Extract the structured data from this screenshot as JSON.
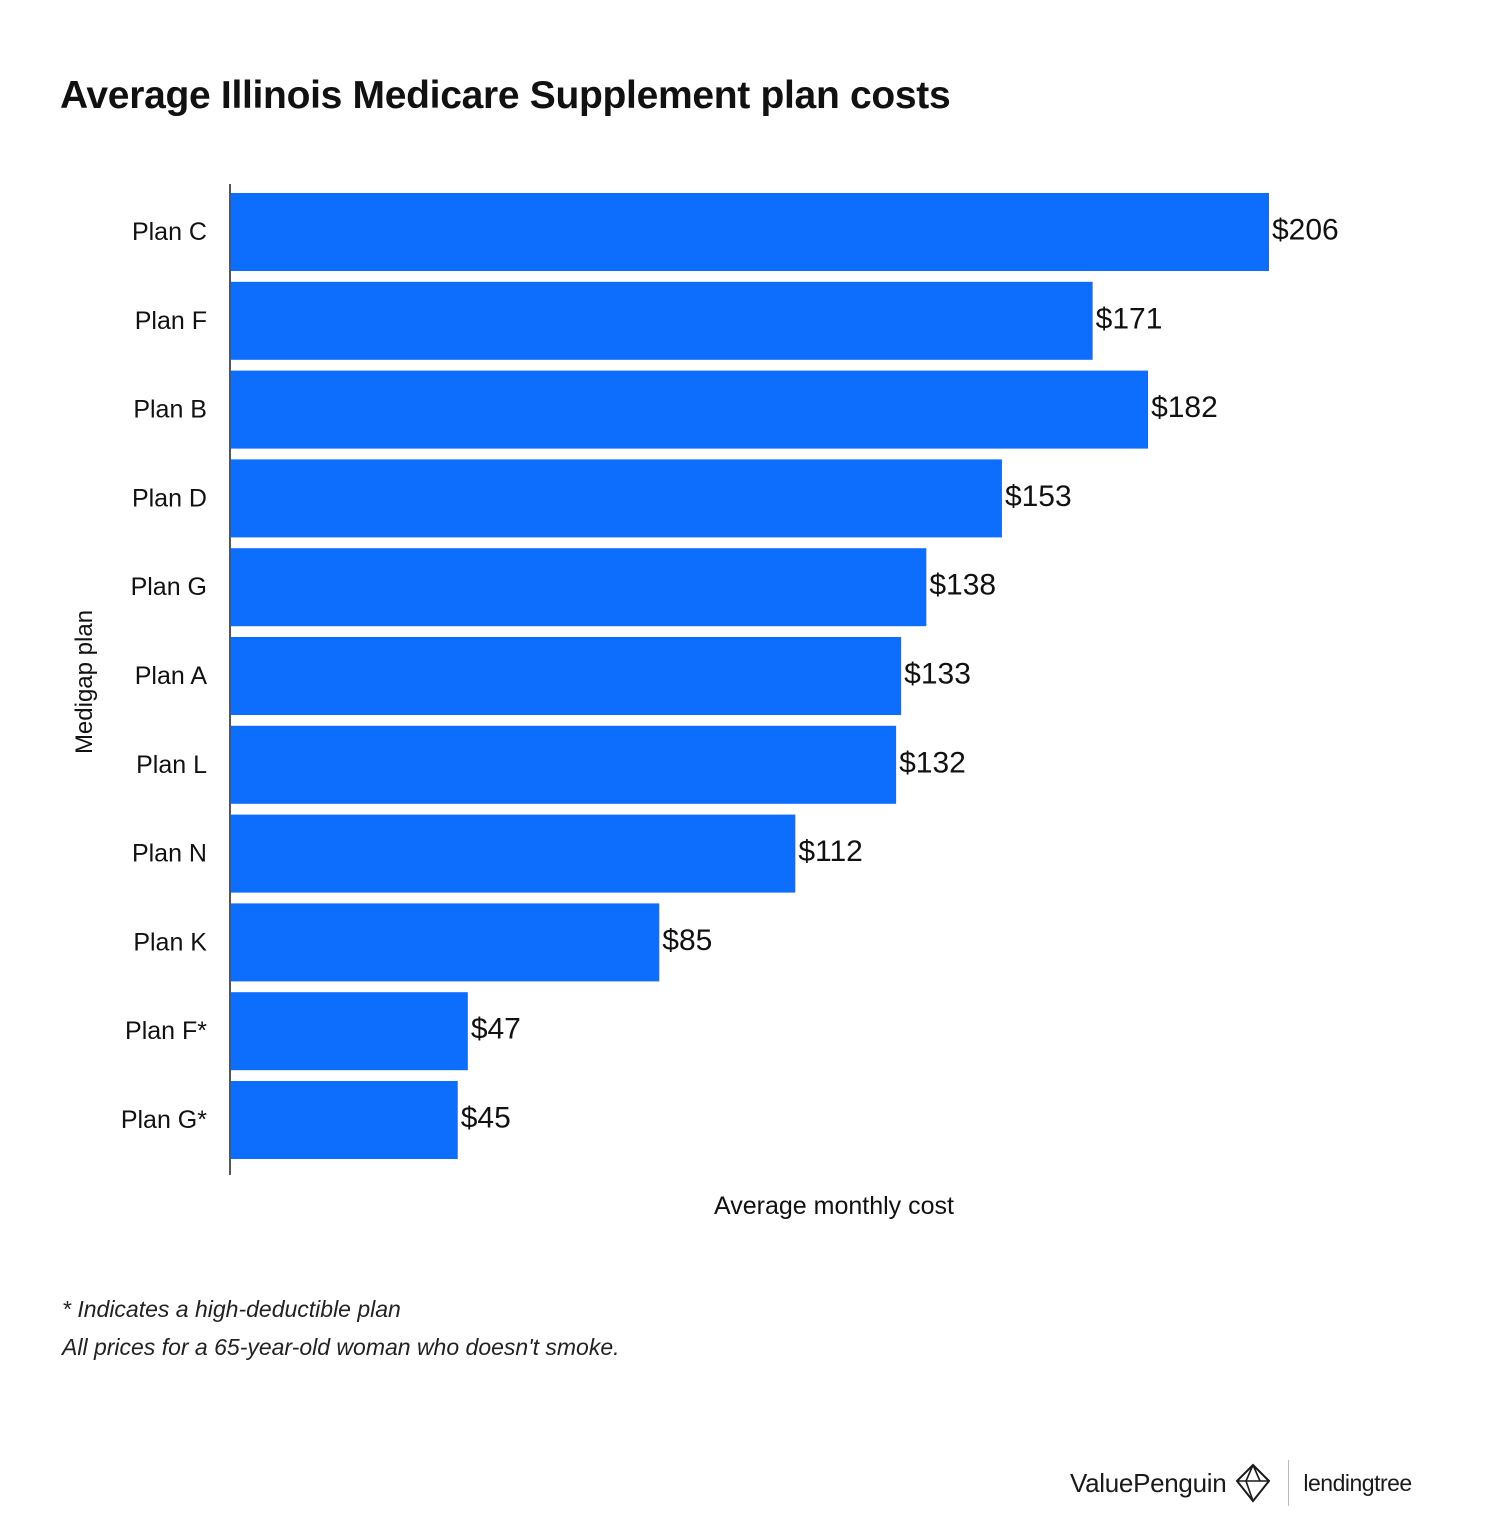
{
  "title": "Average Illinois Medicare Supplement plan costs",
  "footnotes": [
    "* Indicates a high-deductible plan",
    "All prices for a 65-year-old woman who doesn't smoke."
  ],
  "brand": {
    "valuepenguin": "ValuePenguin",
    "lendingtree": "lendingtree"
  },
  "colors": {
    "bar": "#0d6efd",
    "text": "#111111",
    "axis": "#555555"
  },
  "chart_data": {
    "type": "bar",
    "orientation": "horizontal",
    "title": "Average Illinois Medicare Supplement plan costs",
    "xlabel": "Average monthly cost",
    "ylabel": "Medigap plan",
    "categories": [
      "Plan C",
      "Plan F",
      "Plan B",
      "Plan D",
      "Plan G",
      "Plan A",
      "Plan L",
      "Plan N",
      "Plan K",
      "Plan F*",
      "Plan G*"
    ],
    "values": [
      206,
      171,
      182,
      153,
      138,
      133,
      132,
      112,
      85,
      47,
      45
    ],
    "value_labels": [
      "$206",
      "$171",
      "$182",
      "$153",
      "$138",
      "$133",
      "$132",
      "$112",
      "$85",
      "$47",
      "$45"
    ],
    "xlim": [
      0,
      206
    ],
    "grid": false,
    "legend": "none"
  }
}
